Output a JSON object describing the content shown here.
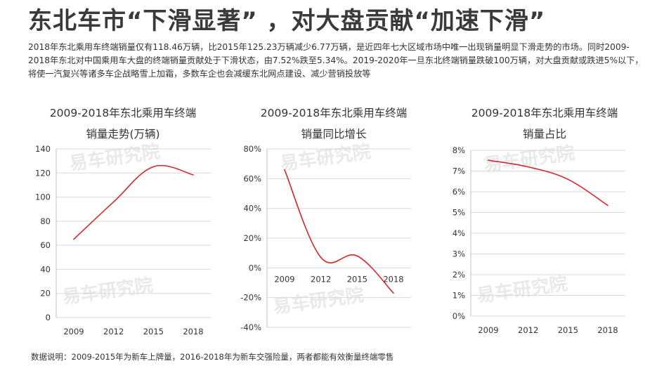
{
  "title": "东北车市“下滑显著” ，对大盘贡献“加速下滑”",
  "description": "2018年东北乘用车终端销量仅有118.46万辆，比2015年125.23万辆减少6.77万辆，是近四年七大区域市场中唯一出现销量明显下滑走势的市场。同时2009-2018年东北对中国乘用车大盘的终端销量贡献处于下滑状态，由7.52%跌至5.34%。2019-2020年一旦东北终端销量跌破100万辆，对大盘贡献或跌进5%以下，将使一汽复兴等诸多车企战略雪上加霜，多数车企也会减缓东北网点建设、减少营销投放等",
  "footnote": "数据说明：2009-2015年为新车上牌量，2016-2018年为新车交强险量，两者都能有效衡量终端零售",
  "watermark": "易车研究院",
  "colors": {
    "line": "#d92525",
    "grid": "#d9d9d9",
    "axis": "#bfbfbf"
  },
  "chart_data": [
    {
      "type": "line",
      "title_lines": [
        "2009-2018年东北乘用车终端",
        "销量走势(万辆)"
      ],
      "categories": [
        "2009",
        "2012",
        "2015",
        "2018"
      ],
      "x": [
        2009,
        2012,
        2015,
        2018
      ],
      "series": [
        {
          "values": [
            65,
            96,
            125.23,
            118.46
          ]
        }
      ],
      "ylim": [
        0,
        140
      ],
      "yticks": [
        0,
        20,
        40,
        60,
        80,
        100,
        120,
        140
      ],
      "ytick_labels": [
        "0",
        "20",
        "40",
        "60",
        "80",
        "100",
        "120",
        "140"
      ],
      "grid": true
    },
    {
      "type": "line",
      "title_lines": [
        "2009-2018年东北乘用车终端",
        "销量同比增长"
      ],
      "categories": [
        "2009",
        "2012",
        "2015",
        "2018"
      ],
      "x": [
        2009,
        2012,
        2015,
        2018
      ],
      "series": [
        {
          "values": [
            66,
            7,
            8,
            -17
          ]
        }
      ],
      "ylim": [
        -40,
        80
      ],
      "yticks": [
        -40,
        -20,
        0,
        20,
        40,
        60,
        80
      ],
      "ytick_labels": [
        "-40%",
        "-20%",
        "0%",
        "20%",
        "40%",
        "60%",
        "80%"
      ],
      "grid": true
    },
    {
      "type": "line",
      "title_lines": [
        "2009-2018年东北乘用车终端",
        "销量占比"
      ],
      "categories": [
        "2009",
        "2012",
        "2015",
        "2018"
      ],
      "x": [
        2009,
        2012,
        2015,
        2018
      ],
      "series": [
        {
          "values": [
            7.52,
            7.2,
            6.6,
            5.34
          ]
        }
      ],
      "ylim": [
        0,
        8
      ],
      "yticks": [
        0,
        1,
        2,
        3,
        4,
        5,
        6,
        7,
        8
      ],
      "ytick_labels": [
        "0%",
        "1%",
        "2%",
        "3%",
        "4%",
        "5%",
        "6%",
        "7%",
        "8%"
      ],
      "grid": true
    }
  ]
}
